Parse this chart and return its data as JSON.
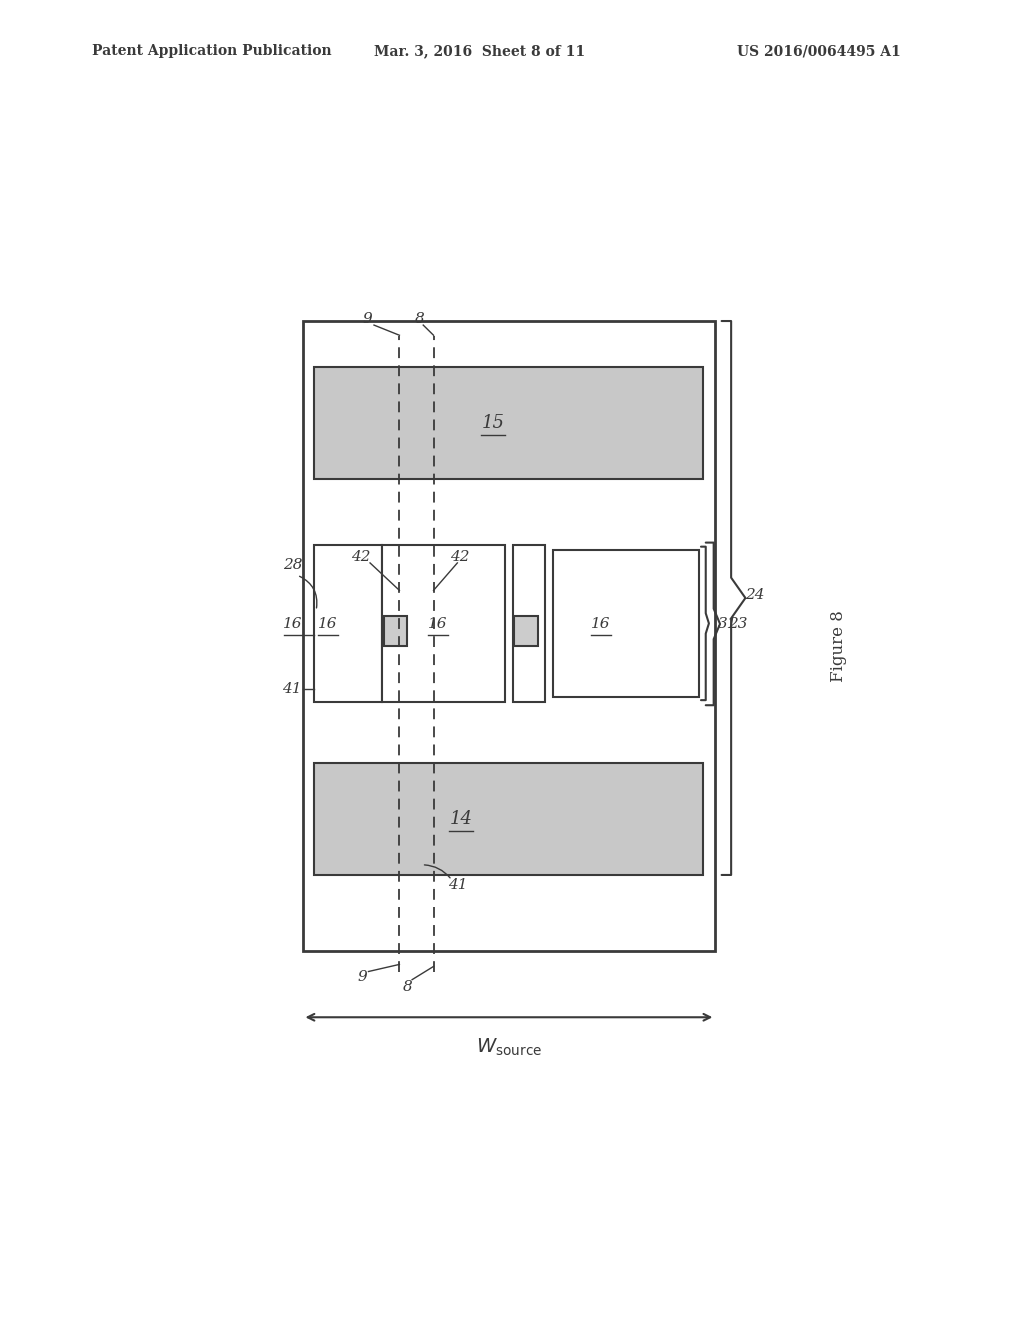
{
  "bg_color": "#ffffff",
  "header_left": "Patent Application Publication",
  "header_center": "Mar. 3, 2016  Sheet 8 of 11",
  "header_right": "US 2016/0064495 A1",
  "figure_label": "Figure 8",
  "gray": "#3a3a3a"
}
